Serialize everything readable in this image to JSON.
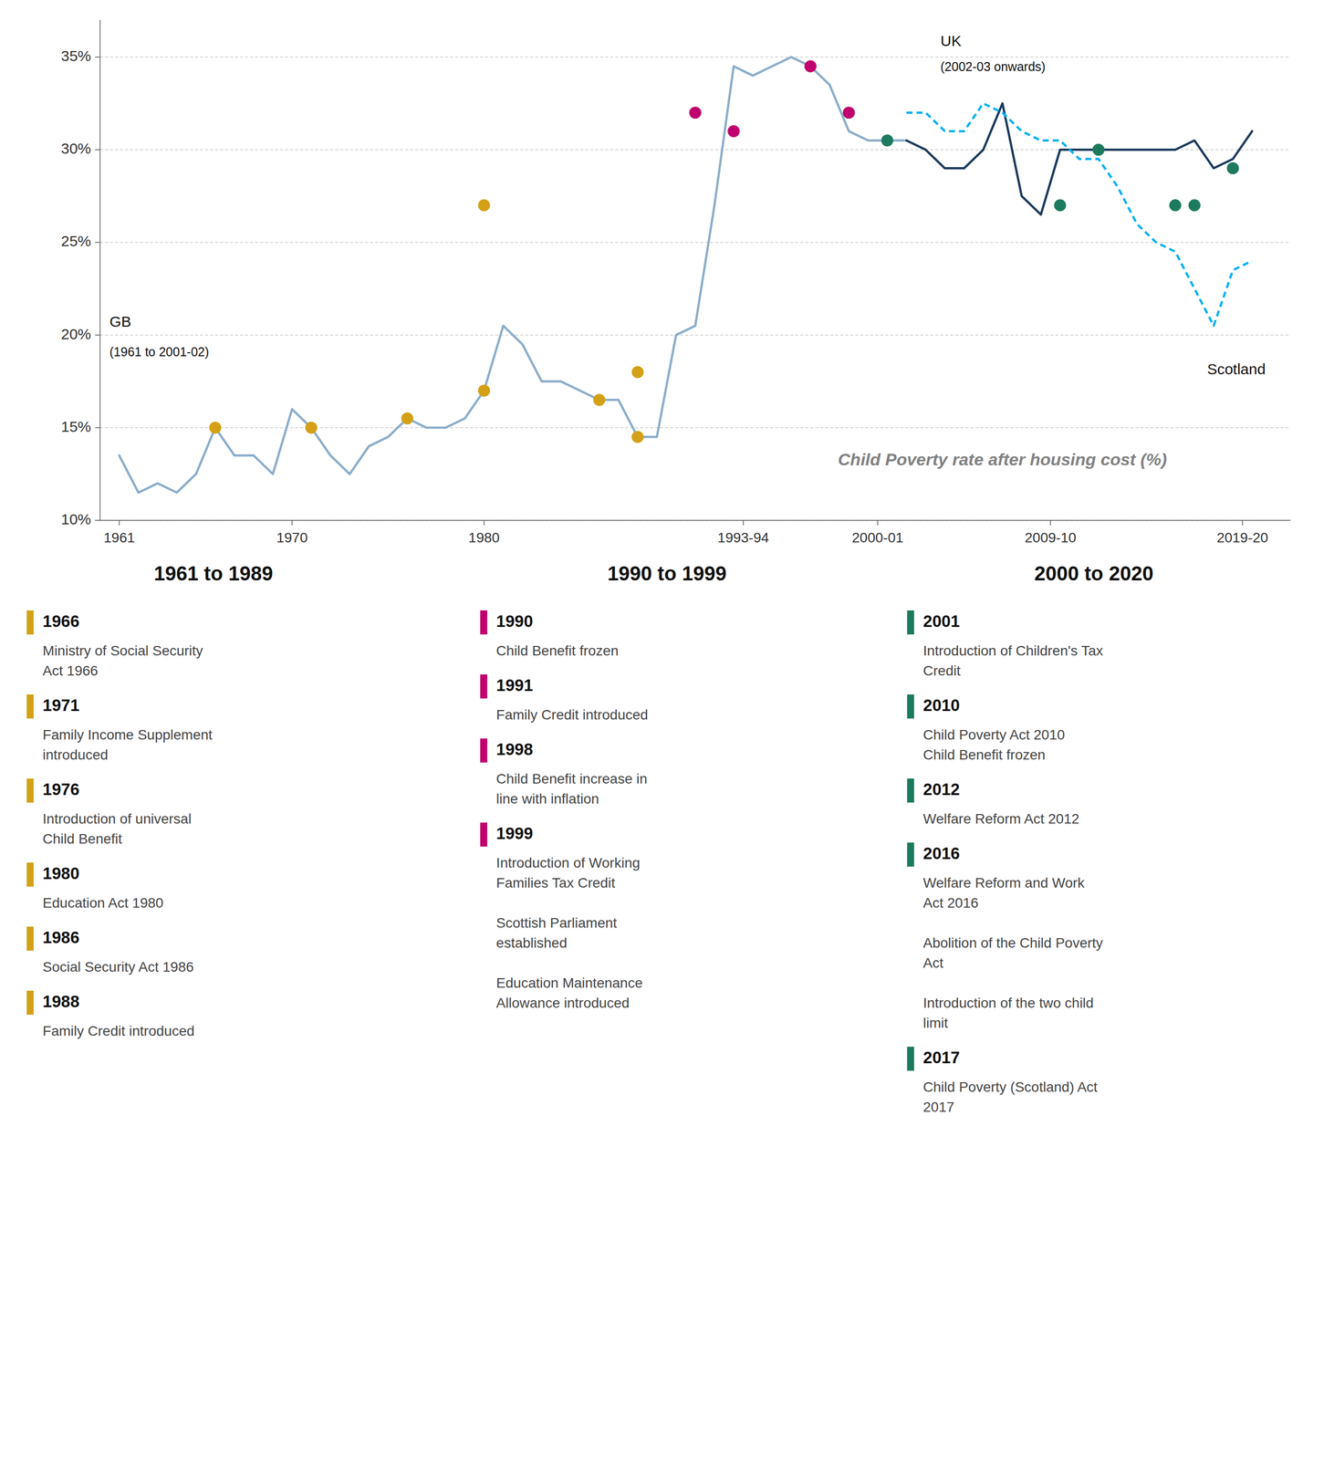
{
  "chart_data": {
    "type": "line",
    "xlim": [
      1960,
      2022
    ],
    "xticks": [
      1961,
      1970,
      1980,
      {
        "value": 1993.5,
        "label": "1993-94"
      },
      {
        "value": 2000.5,
        "label": "2000-01"
      },
      {
        "value": 2009.5,
        "label": "2009-10"
      },
      {
        "value": 2019.5,
        "label": "2019-20"
      }
    ],
    "ylim": [
      10,
      37
    ],
    "yticks": [
      {
        "value": 10,
        "label": "10%"
      },
      {
        "value": 15,
        "label": "15%"
      },
      {
        "value": 20,
        "label": "20%"
      },
      {
        "value": 25,
        "label": "25%"
      },
      {
        "value": 30,
        "label": "30%"
      },
      {
        "value": 35,
        "label": "35%"
      }
    ],
    "grid": true,
    "series": [
      {
        "name": "GB",
        "type": "line",
        "line_style": "solid",
        "color": "#8aadca",
        "x": [
          1961,
          1962,
          1963,
          1964,
          1965,
          1966,
          1967,
          1968,
          1969,
          1970,
          1971,
          1972,
          1973,
          1974,
          1975,
          1976,
          1977,
          1978,
          1979,
          1980,
          1981,
          1982,
          1983,
          1984,
          1985,
          1986,
          1987,
          1988,
          1989,
          1990,
          1991,
          1992,
          1993,
          1994,
          1995,
          1996,
          1997,
          1998,
          1999,
          2000,
          2001,
          2002
        ],
        "values": [
          13.5,
          11.5,
          12.0,
          11.5,
          12.5,
          15.0,
          13.5,
          13.5,
          12.5,
          16.0,
          15.0,
          13.5,
          12.5,
          14.0,
          14.5,
          15.5,
          15.0,
          15.0,
          15.5,
          17.0,
          20.5,
          19.5,
          17.5,
          17.5,
          17.0,
          16.5,
          16.5,
          14.5,
          14.5,
          20.0,
          20.5,
          27.0,
          34.5,
          34.0,
          34.5,
          35.0,
          34.5,
          33.5,
          31.0,
          30.5,
          30.5,
          30.5
        ]
      },
      {
        "name": "UK",
        "type": "line",
        "line_style": "solid",
        "color": "#1a3a5c",
        "x": [
          2002,
          2003,
          2004,
          2005,
          2006,
          2007,
          2008,
          2009,
          2010,
          2011,
          2012,
          2013,
          2014,
          2015,
          2016,
          2017,
          2018,
          2019,
          2020
        ],
        "values": [
          30.5,
          30.0,
          29.0,
          29.0,
          30.0,
          32.5,
          27.5,
          26.5,
          30.0,
          30.0,
          30.0,
          30.0,
          30.0,
          30.0,
          30.0,
          30.5,
          29.0,
          29.5,
          31.0
        ]
      },
      {
        "name": "Scotland",
        "type": "line",
        "line_style": "dashed",
        "color": "#00b0f0",
        "x": [
          2002,
          2003,
          2004,
          2005,
          2006,
          2007,
          2008,
          2009,
          2010,
          2011,
          2012,
          2013,
          2014,
          2015,
          2016,
          2017,
          2018,
          2019,
          2020
        ],
        "values": [
          32.0,
          32.0,
          31.0,
          31.0,
          32.5,
          32.0,
          31.0,
          30.5,
          30.5,
          29.5,
          29.5,
          28.0,
          26.0,
          25.0,
          24.5,
          22.5,
          20.5,
          23.5,
          24.0
        ]
      },
      {
        "type": "scatter",
        "marker": "circle",
        "color": "#d4a017",
        "x": [
          1966,
          1971,
          1976,
          1980,
          1986,
          1988
        ],
        "values": [
          15.0,
          15.0,
          15.5,
          17.0,
          16.5,
          14.5
        ]
      },
      {
        "type": "scatter",
        "marker": "circle",
        "color": "#c0006e",
        "x": [
          1991,
          1993,
          1997,
          1999
        ],
        "values": [
          32.0,
          31.0,
          34.5,
          32.0
        ]
      },
      {
        "type": "scatter",
        "marker": "circle",
        "color": "#1d7a5f",
        "x": [
          2001,
          2010,
          2012,
          2016,
          2017,
          2019
        ],
        "values": [
          30.5,
          27.0,
          30.0,
          27.0,
          27.0,
          29.0
        ]
      },
      {
        "type": "scatter",
        "marker": "circle",
        "color": "#d4a017",
        "x": [
          1980,
          1988
        ],
        "values": [
          27.0,
          18.0
        ]
      }
    ],
    "annotations": [
      "(1961 to 2001-02)",
      "(2002-03 onwards)",
      "Child Poverty rate after housing cost (%)"
    ],
    "timeline": [
      {
        "title": "1961 to 1989",
        "color": "#d4a017",
        "items": [
          {
            "year": "1966",
            "text": "Ministry of Social Security\nAct 1966"
          },
          {
            "year": "1971",
            "text": "Family Income Supplement\nintroduced"
          },
          {
            "year": "1976",
            "text": "Introduction of universal\nChild Benefit"
          },
          {
            "year": "1980",
            "text": "Education Act 1980"
          },
          {
            "year": "1986",
            "text": "Social Security Act 1986"
          },
          {
            "year": "1988",
            "text": "Family Credit introduced"
          }
        ]
      },
      {
        "title": "1990 to 1999",
        "color": "#c0006e",
        "items": [
          {
            "year": "1990",
            "text": "Child Benefit frozen"
          },
          {
            "year": "1991",
            "text": "Family Credit introduced"
          },
          {
            "year": "1998",
            "text": "Child Benefit increase in\nline with inflation"
          },
          {
            "year": "1999",
            "text": "Introduction of Working\nFamilies Tax Credit\n \nScottish Parliament\nestablished\n \nEducation Maintenance\nAllowance introduced"
          }
        ]
      },
      {
        "title": "2000 to 2020",
        "color": "#1d7a5f",
        "items": [
          {
            "year": "2001",
            "text": "Introduction of Children's Tax\nCredit"
          },
          {
            "year": "2010",
            "text": "Child Poverty Act 2010\nChild Benefit frozen"
          },
          {
            "year": "2012",
            "text": "Welfare Reform Act 2012"
          },
          {
            "year": "2016",
            "text": "Welfare Reform and Work\nAct 2016\n \nAbolition of the Child Poverty\nAct\n \nIntroduction of the two child\nlimit"
          },
          {
            "year": "2017",
            "text": "Child Poverty (Scotland) Act\n2017"
          }
        ]
      }
    ]
  }
}
